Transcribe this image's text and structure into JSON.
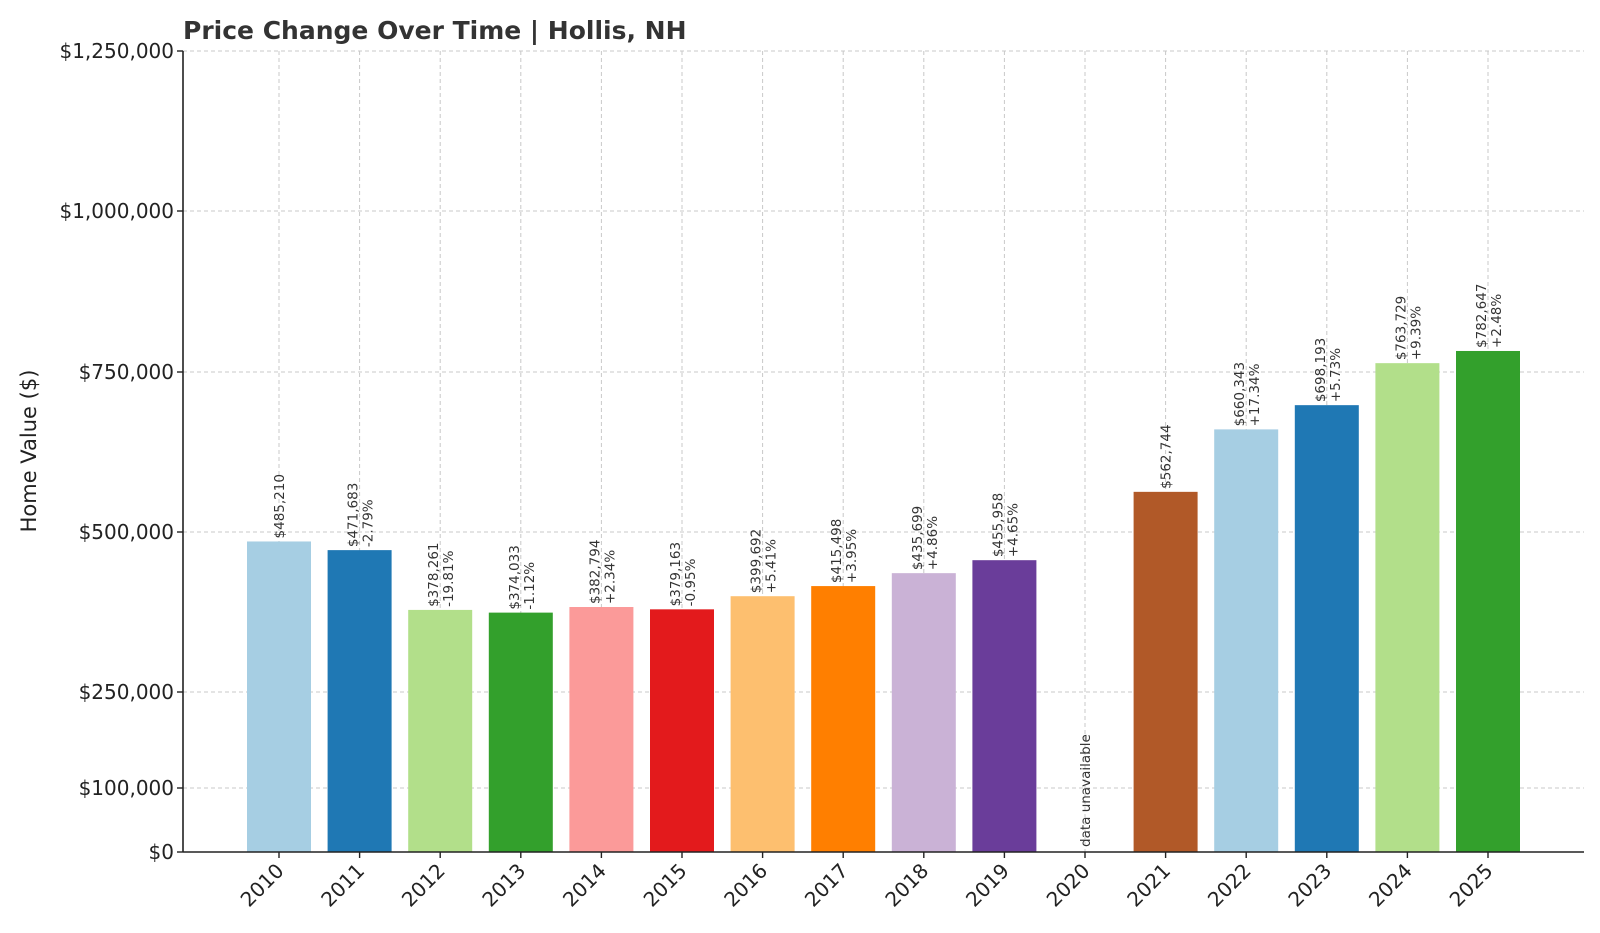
{
  "chart_data": {
    "type": "bar",
    "title": "Price Change Over Time | Hollis, NH",
    "xlabel": "",
    "ylabel": "Home Value ($)",
    "ylim": [
      0,
      1250000
    ],
    "grid": true,
    "yticks": [
      {
        "value": 0,
        "label": "$0"
      },
      {
        "value": 100000,
        "label": "$100,000"
      },
      {
        "value": 250000,
        "label": "$250,000"
      },
      {
        "value": 500000,
        "label": "$500,000"
      },
      {
        "value": 750000,
        "label": "$750,000"
      },
      {
        "value": 1000000,
        "label": "$1,000,000"
      },
      {
        "value": 1250000,
        "label": "$1,250,000"
      }
    ],
    "categories": [
      "2010",
      "2011",
      "2012",
      "2013",
      "2014",
      "2015",
      "2016",
      "2017",
      "2018",
      "2019",
      "2020",
      "2021",
      "2022",
      "2023",
      "2024",
      "2025"
    ],
    "values": [
      485210,
      471683,
      378261,
      374033,
      382794,
      379163,
      399692,
      415498,
      435699,
      455958,
      null,
      562744,
      660343,
      698193,
      763729,
      782647
    ],
    "value_labels": [
      "$485,210",
      "$471,683",
      "$378,261",
      "$374,033",
      "$382,794",
      "$379,163",
      "$399,692",
      "$415,498",
      "$435,699",
      "$455,958",
      "",
      "$562,744",
      "$660,343",
      "$698,193",
      "$763,729",
      "$782,647"
    ],
    "change_labels": [
      "",
      "-2.79%",
      "-19.81%",
      "-1.12%",
      "+2.34%",
      "-0.95%",
      "+5.41%",
      "+3.95%",
      "+4.86%",
      "+4.65%",
      "",
      "",
      "+17.34%",
      "+5.73%",
      "+9.39%",
      "+2.48%"
    ],
    "missing_label": "data unavailable",
    "colors": [
      "#a6cee3",
      "#1f78b4",
      "#b2df8a",
      "#33a02c",
      "#fb9a99",
      "#e31a1c",
      "#fdbf6f",
      "#ff7f00",
      "#cab2d6",
      "#6a3d9a",
      "#ffffff",
      "#b15928",
      "#a6cee3",
      "#1f78b4",
      "#b2df8a",
      "#33a02c"
    ]
  }
}
